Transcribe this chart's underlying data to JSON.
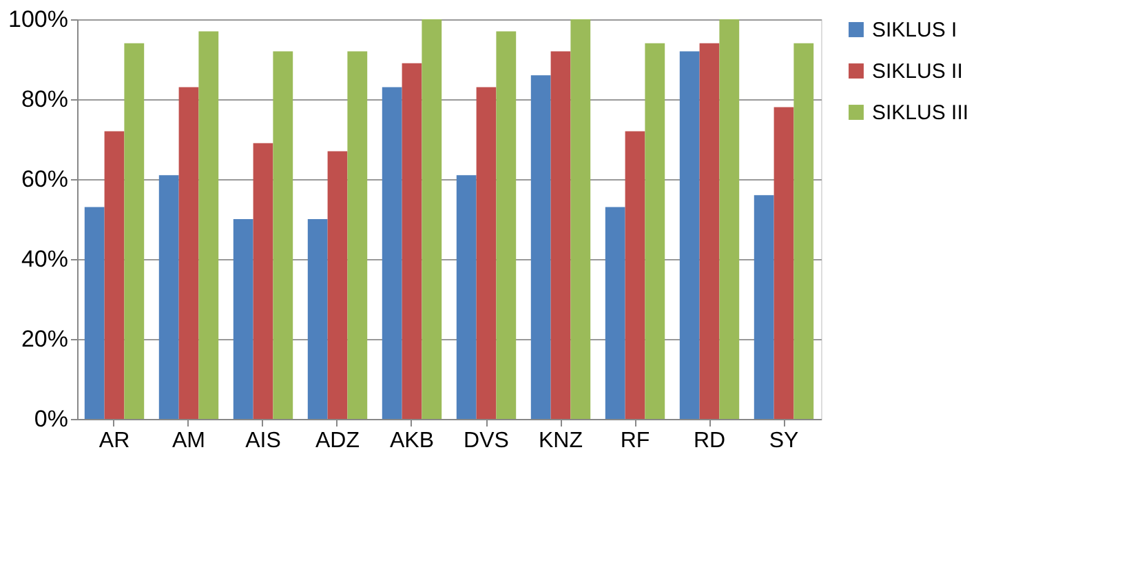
{
  "chart_data": {
    "type": "bar",
    "categories": [
      "AR",
      "AM",
      "AIS",
      "ADZ",
      "AKB",
      "DVS",
      "KNZ",
      "RF",
      "RD",
      "SY"
    ],
    "series": [
      {
        "name": "SIKLUS I",
        "color": "#4f81bd",
        "values": [
          53,
          61,
          50,
          50,
          83,
          61,
          86,
          53,
          92,
          56
        ]
      },
      {
        "name": "SIKLUS II",
        "color": "#c0504d",
        "values": [
          72,
          83,
          69,
          67,
          89,
          83,
          92,
          72,
          94,
          78
        ]
      },
      {
        "name": "SIKLUS III",
        "color": "#9bbb59",
        "values": [
          94,
          97,
          92,
          92,
          100,
          97,
          100,
          94,
          100,
          94
        ]
      }
    ],
    "ylim": [
      0,
      100
    ],
    "yticks": [
      {
        "value": 0,
        "label": "0%"
      },
      {
        "value": 20,
        "label": "20%"
      },
      {
        "value": 40,
        "label": "40%"
      },
      {
        "value": 60,
        "label": "60%"
      },
      {
        "value": 80,
        "label": "80%"
      },
      {
        "value": 100,
        "label": "100%"
      }
    ],
    "grid": "y",
    "legend": "right"
  }
}
